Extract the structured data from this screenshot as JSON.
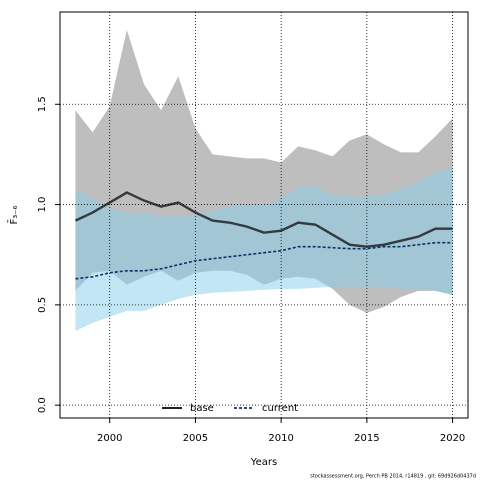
{
  "chart_data": {
    "type": "line-band",
    "xlabel": "Years",
    "ylabel": "F̄₃₋₆",
    "footer": "stockassessment.org, Perch PB 2014, r14819 , git: 69d926d0437d",
    "x": [
      1998,
      1999,
      2000,
      2001,
      2002,
      2003,
      2004,
      2005,
      2006,
      2007,
      2008,
      2009,
      2010,
      2011,
      2012,
      2013,
      2014,
      2015,
      2016,
      2017,
      2018,
      2019,
      2020
    ],
    "xlim": [
      1997.1,
      2020.9
    ],
    "xticks": [
      2000,
      2005,
      2010,
      2015,
      2020
    ],
    "ylim": [
      -0.064,
      1.96
    ],
    "yticks": [
      {
        "value": 0,
        "label": "0.0"
      },
      {
        "value": 0.5,
        "label": "0.5"
      },
      {
        "value": 1,
        "label": "1.0"
      },
      {
        "value": 1.5,
        "label": "1.5"
      }
    ],
    "grid": true,
    "legend": "bottom",
    "series": [
      {
        "name": "base",
        "color": "#000000",
        "dash": false,
        "band_color": "#bebebe",
        "values": [
          0.92,
          0.96,
          1.01,
          1.06,
          1.02,
          0.99,
          1.01,
          0.96,
          0.92,
          0.91,
          0.89,
          0.86,
          0.87,
          0.91,
          0.9,
          0.85,
          0.8,
          0.79,
          0.8,
          0.82,
          0.84,
          0.88,
          0.88
        ],
        "upper": [
          1.47,
          1.36,
          1.49,
          1.87,
          1.6,
          1.47,
          1.64,
          1.38,
          1.25,
          1.24,
          1.23,
          1.23,
          1.21,
          1.29,
          1.27,
          1.24,
          1.32,
          1.35,
          1.3,
          1.26,
          1.26,
          1.34,
          1.43
        ],
        "lower": [
          0.57,
          0.66,
          0.67,
          0.6,
          0.64,
          0.67,
          0.62,
          0.66,
          0.67,
          0.67,
          0.65,
          0.6,
          0.63,
          0.64,
          0.63,
          0.58,
          0.5,
          0.46,
          0.49,
          0.54,
          0.57,
          0.57,
          0.55
        ]
      },
      {
        "name": "current",
        "color": "#08306b",
        "dash": true,
        "band_color": "#87ceeb",
        "values": [
          0.63,
          0.64,
          0.66,
          0.67,
          0.67,
          0.68,
          0.7,
          0.72,
          0.73,
          0.74,
          0.75,
          0.76,
          0.77,
          0.79,
          0.79,
          0.785,
          0.78,
          0.78,
          0.79,
          0.79,
          0.8,
          0.81,
          0.81
        ],
        "upper": [
          1.08,
          1.03,
          0.98,
          0.96,
          0.955,
          0.945,
          0.94,
          0.95,
          0.97,
          0.99,
          1.0,
          1.0,
          1.03,
          1.09,
          1.09,
          1.05,
          1.04,
          1.04,
          1.05,
          1.08,
          1.11,
          1.16,
          1.19
        ],
        "lower": [
          0.37,
          0.41,
          0.44,
          0.47,
          0.47,
          0.5,
          0.53,
          0.55,
          0.56,
          0.565,
          0.57,
          0.575,
          0.58,
          0.58,
          0.585,
          0.59,
          0.59,
          0.59,
          0.59,
          0.58,
          0.58,
          0.57,
          0.55
        ]
      }
    ]
  }
}
